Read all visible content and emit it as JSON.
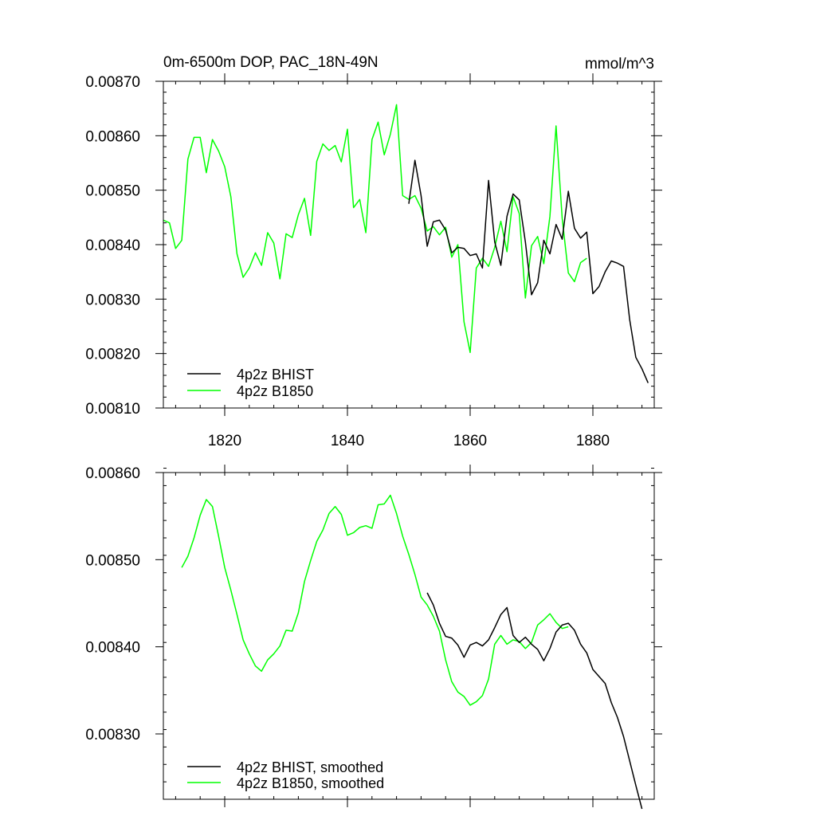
{
  "chart_data": [
    {
      "type": "line",
      "title": "0m-6500m DOP, PAC_18N-49N",
      "units": "mmol/m^3",
      "xlabel": "",
      "ylabel": "",
      "xlim": [
        1810,
        1890
      ],
      "ylim": [
        0.0081,
        0.0087
      ],
      "grid": false,
      "legend_position": "bottom-left",
      "x_ticks": [
        1820,
        1840,
        1860,
        1880
      ],
      "x_tick_labels": [
        "1820",
        "1840",
        "1860",
        "1880"
      ],
      "y_ticks": [
        0.0081,
        0.0082,
        0.0083,
        0.0084,
        0.0085,
        0.0086,
        0.0087
      ],
      "y_tick_labels": [
        "0.00810",
        "0.00820",
        "0.00830",
        "0.00840",
        "0.00850",
        "0.00860",
        "0.00870"
      ],
      "series": [
        {
          "name": "4p2z BHIST",
          "color": "#000000",
          "x": [
            1850,
            1851,
            1852,
            1853,
            1854,
            1855,
            1856,
            1857,
            1858,
            1859,
            1860,
            1861,
            1862,
            1863,
            1864,
            1865,
            1866,
            1867,
            1868,
            1869,
            1870,
            1871,
            1872,
            1873,
            1874,
            1875,
            1876,
            1877,
            1878,
            1879,
            1880,
            1881,
            1882,
            1883,
            1884,
            1885,
            1886,
            1887,
            1888,
            1889
          ],
          "values": [
            0.008475,
            0.008555,
            0.00849,
            0.008397,
            0.008442,
            0.008445,
            0.008427,
            0.008385,
            0.008395,
            0.008393,
            0.00838,
            0.008383,
            0.008357,
            0.008518,
            0.008405,
            0.008362,
            0.008452,
            0.008493,
            0.008482,
            0.008405,
            0.008308,
            0.00833,
            0.008408,
            0.008383,
            0.008437,
            0.00841,
            0.008498,
            0.00843,
            0.008412,
            0.008423,
            0.00831,
            0.008323,
            0.00835,
            0.00837,
            0.008366,
            0.00836,
            0.008262,
            0.008193,
            0.008172,
            0.008146
          ]
        },
        {
          "name": "4p2z B1850",
          "color": "#00ff00",
          "x": [
            1810,
            1811,
            1812,
            1813,
            1814,
            1815,
            1816,
            1817,
            1818,
            1819,
            1820,
            1821,
            1822,
            1823,
            1824,
            1825,
            1826,
            1827,
            1828,
            1829,
            1830,
            1831,
            1832,
            1833,
            1834,
            1835,
            1836,
            1837,
            1838,
            1839,
            1840,
            1841,
            1842,
            1843,
            1844,
            1845,
            1846,
            1847,
            1848,
            1849,
            1850,
            1851,
            1852,
            1853,
            1854,
            1855,
            1856,
            1857,
            1858,
            1859,
            1860,
            1861,
            1862,
            1863,
            1864,
            1865,
            1866,
            1867,
            1868,
            1869,
            1870,
            1871,
            1872,
            1873,
            1874,
            1875,
            1876,
            1877,
            1878,
            1879
          ],
          "values": [
            0.008445,
            0.00844,
            0.008393,
            0.008408,
            0.008557,
            0.008597,
            0.008597,
            0.008532,
            0.008593,
            0.008572,
            0.008543,
            0.008488,
            0.008383,
            0.00834,
            0.008357,
            0.008385,
            0.008362,
            0.008422,
            0.008403,
            0.008337,
            0.00842,
            0.008413,
            0.008455,
            0.008485,
            0.008417,
            0.008553,
            0.008585,
            0.008573,
            0.008582,
            0.008552,
            0.008612,
            0.008468,
            0.008483,
            0.008422,
            0.008593,
            0.008625,
            0.008565,
            0.008603,
            0.008657,
            0.00849,
            0.008483,
            0.00849,
            0.008467,
            0.008425,
            0.008433,
            0.008418,
            0.008432,
            0.008377,
            0.0084,
            0.008258,
            0.008202,
            0.008357,
            0.008375,
            0.00836,
            0.008395,
            0.008443,
            0.008387,
            0.008488,
            0.008457,
            0.008302,
            0.008398,
            0.008415,
            0.008365,
            0.008452,
            0.008618,
            0.008448,
            0.008348,
            0.008332,
            0.008367,
            0.008375
          ]
        }
      ]
    },
    {
      "type": "line",
      "title": "",
      "xlabel": "",
      "ylabel": "",
      "xlim": [
        1810,
        1890
      ],
      "ylim": [
        0.008225,
        0.0086
      ],
      "grid": false,
      "legend_position": "bottom-left",
      "x_ticks": [
        1820,
        1840,
        1860,
        1880
      ],
      "y_ticks": [
        0.0083,
        0.0084,
        0.0085,
        0.0086
      ],
      "y_tick_labels": [
        "0.00830",
        "0.00840",
        "0.00850",
        "0.00860"
      ],
      "series": [
        {
          "name": "4p2z BHIST, smoothed",
          "color": "#000000",
          "x": [
            1853,
            1854,
            1855,
            1856,
            1857,
            1858,
            1859,
            1860,
            1861,
            1862,
            1863,
            1864,
            1865,
            1866,
            1867,
            1868,
            1869,
            1870,
            1871,
            1872,
            1873,
            1874,
            1875,
            1876,
            1877,
            1878,
            1879,
            1880,
            1881,
            1882,
            1883,
            1884,
            1885,
            1886,
            1887,
            1888
          ],
          "values": [
            0.008462,
            0.008448,
            0.008427,
            0.008412,
            0.00841,
            0.008402,
            0.008388,
            0.008402,
            0.008405,
            0.008401,
            0.008408,
            0.008422,
            0.008437,
            0.008445,
            0.008413,
            0.008405,
            0.008411,
            0.008403,
            0.008397,
            0.008384,
            0.008398,
            0.008417,
            0.008425,
            0.008427,
            0.008419,
            0.008403,
            0.008393,
            0.008374,
            0.008366,
            0.008358,
            0.008336,
            0.008319,
            0.008297,
            0.008269,
            0.008241,
            0.008214
          ]
        },
        {
          "name": "4p2z B1850, smoothed",
          "color": "#00ff00",
          "x": [
            1813,
            1814,
            1815,
            1816,
            1817,
            1818,
            1819,
            1820,
            1821,
            1822,
            1823,
            1824,
            1825,
            1826,
            1827,
            1828,
            1829,
            1830,
            1831,
            1832,
            1833,
            1834,
            1835,
            1836,
            1837,
            1838,
            1839,
            1840,
            1841,
            1842,
            1843,
            1844,
            1845,
            1846,
            1847,
            1848,
            1849,
            1850,
            1851,
            1852,
            1853,
            1854,
            1855,
            1856,
            1857,
            1858,
            1859,
            1860,
            1861,
            1862,
            1863,
            1864,
            1865,
            1866,
            1867,
            1868,
            1869,
            1870,
            1871,
            1872,
            1873,
            1874,
            1875,
            1876
          ],
          "values": [
            0.008491,
            0.008504,
            0.008525,
            0.008551,
            0.008569,
            0.008561,
            0.008527,
            0.008491,
            0.008465,
            0.008437,
            0.008408,
            0.008392,
            0.008378,
            0.008372,
            0.008385,
            0.008392,
            0.008401,
            0.008419,
            0.008418,
            0.008439,
            0.008475,
            0.008499,
            0.008521,
            0.008534,
            0.008553,
            0.008561,
            0.008552,
            0.008528,
            0.008531,
            0.008537,
            0.008539,
            0.008536,
            0.008563,
            0.008564,
            0.008574,
            0.008553,
            0.008527,
            0.008506,
            0.008483,
            0.008457,
            0.008448,
            0.008435,
            0.008418,
            0.008385,
            0.00836,
            0.008348,
            0.008343,
            0.008333,
            0.008337,
            0.008344,
            0.008363,
            0.008403,
            0.008413,
            0.008403,
            0.008408,
            0.008406,
            0.008398,
            0.008405,
            0.008425,
            0.008431,
            0.008438,
            0.008428,
            0.008421,
            0.008423
          ]
        }
      ]
    }
  ]
}
